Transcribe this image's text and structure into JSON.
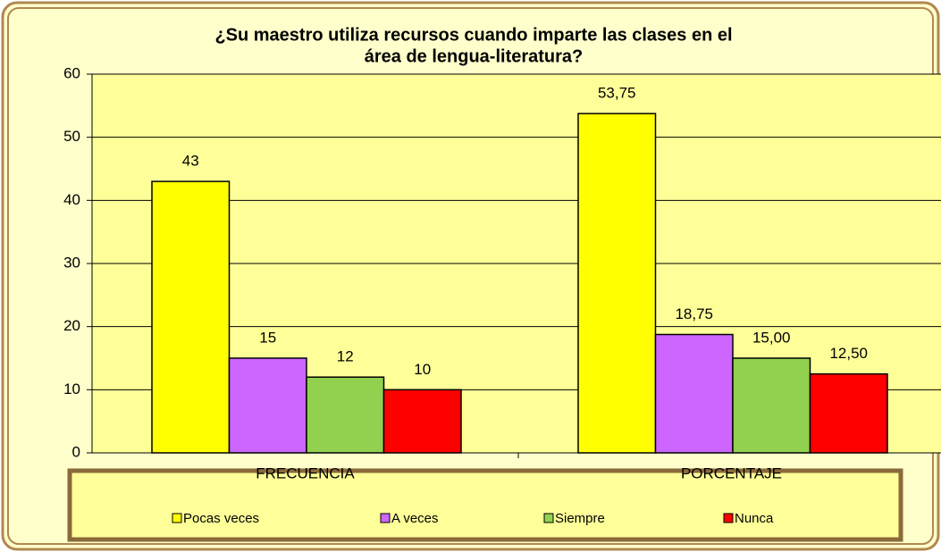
{
  "chart_data": {
    "type": "bar",
    "title": [
      "¿Su maestro utiliza  recursos cuando imparte las clases en el",
      "área de lengua-literatura?"
    ],
    "categories": [
      "FRECUENCIA",
      "PORCENTAJE"
    ],
    "series": [
      {
        "name": "Pocas veces",
        "color": "#ffff00",
        "values": [
          43,
          53.75
        ],
        "value_labels": [
          "43",
          "53,75"
        ]
      },
      {
        "name": "A veces",
        "color": "#cc66ff",
        "values": [
          15,
          18.75
        ],
        "value_labels": [
          "15",
          "18,75"
        ]
      },
      {
        "name": "Siempre",
        "color": "#92d050",
        "values": [
          12,
          15
        ],
        "value_labels": [
          "12",
          "15,00"
        ]
      },
      {
        "name": "Nunca",
        "color": "#ff0000",
        "values": [
          10,
          12.5
        ],
        "value_labels": [
          "10",
          "12,50"
        ]
      }
    ],
    "ylim": [
      0,
      60
    ],
    "yticks": [
      0,
      10,
      20,
      30,
      40,
      50,
      60
    ],
    "grid": true,
    "legend": "bottom"
  }
}
